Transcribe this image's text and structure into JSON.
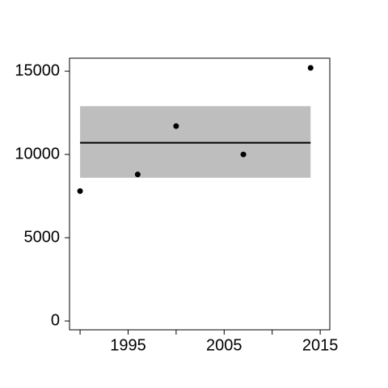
{
  "chart_data": {
    "type": "scatter",
    "x": [
      1990,
      1996,
      2000,
      2007,
      2014
    ],
    "values": [
      7800,
      8800,
      11700,
      10000,
      15200
    ],
    "color": "#000000",
    "mean": 10700,
    "band": [
      8600,
      12900
    ],
    "band_color": "#bebebe",
    "line_x": [
      1990,
      2014
    ],
    "xlim": [
      1988.9,
      2016
    ],
    "ylim": [
      -530,
      15780
    ],
    "xticks": [
      1995,
      2005,
      2015
    ],
    "xminor_ticks": [
      1990,
      2000,
      2010
    ],
    "yticks": [
      0,
      5000,
      10000,
      15000
    ]
  }
}
